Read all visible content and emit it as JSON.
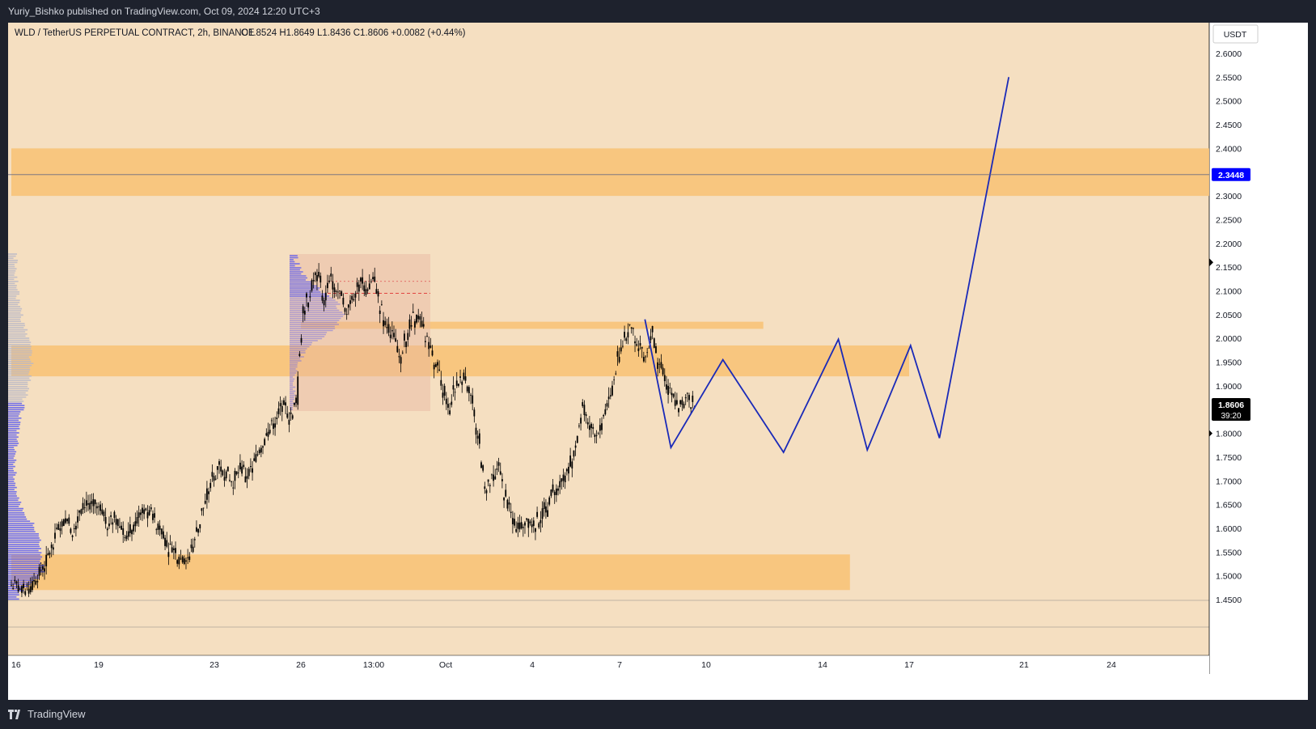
{
  "header": {
    "publisher_line": "Yuriy_Bishko published on TradingView.com, Oct 09, 2024 12:20 UTC+3"
  },
  "legend": {
    "symbol": "WLD / TetherUS PERPETUAL CONTRACT, 2h, BINANCE",
    "ohlc": "O1.8524  H1.8649  L1.8436  C1.8606  +0.0082 (+0.44%)"
  },
  "currency_button": "USDT",
  "footer": {
    "brand": "TradingView"
  },
  "colors": {
    "background": "#f5dfc1",
    "zone": "#f7c37a",
    "candle": "#000000",
    "projection": "#1a2ab8",
    "volume_profile": "#6161ef",
    "current_price_badge": "#000000",
    "level_badge": "#0000ff"
  },
  "chart_data": {
    "type": "candlestick",
    "symbol": "WLDUSDT.P",
    "timeframe": "2h",
    "ylim": [
      1.45,
      2.62
    ],
    "y_ticks": [
      "2.6000",
      "2.5500",
      "2.5000",
      "2.4500",
      "2.4000",
      "2.3500",
      "2.3000",
      "2.2500",
      "2.2000",
      "2.1500",
      "2.1000",
      "2.0500",
      "2.0000",
      "1.9500",
      "1.9000",
      "1.8500",
      "1.8000",
      "1.7500",
      "1.7000",
      "1.6500",
      "1.6000",
      "1.5500",
      "1.5000",
      "1.4500"
    ],
    "x_ticks": [
      "16",
      "19",
      "23",
      "26",
      "13:00",
      "Oct",
      "4",
      "7",
      "10",
      "14",
      "17",
      "21",
      "24"
    ],
    "current_price": {
      "value": "1.8606",
      "countdown": "39:20"
    },
    "horizontal_level": {
      "value": "2.3448"
    },
    "zones": [
      {
        "from": 2.3,
        "to": 2.4,
        "x_start": "16",
        "x_end": "right-edge"
      },
      {
        "from": 1.92,
        "to": 1.985,
        "x_start": "16",
        "x_end": "17"
      },
      {
        "from": 2.02,
        "to": 2.035,
        "x_start": "26",
        "x_end": "12 Oct"
      },
      {
        "from": 1.47,
        "to": 1.545,
        "x_start": "16",
        "x_end": "15 Oct"
      }
    ],
    "price_path_close": [
      1.48,
      1.46,
      1.47,
      1.5,
      1.52,
      1.56,
      1.6,
      1.62,
      1.6,
      1.64,
      1.65,
      1.66,
      1.63,
      1.61,
      1.62,
      1.6,
      1.59,
      1.61,
      1.63,
      1.64,
      1.61,
      1.58,
      1.56,
      1.54,
      1.53,
      1.55,
      1.6,
      1.66,
      1.7,
      1.73,
      1.72,
      1.7,
      1.73,
      1.71,
      1.74,
      1.77,
      1.8,
      1.83,
      1.86,
      1.84,
      1.86,
      2.05,
      2.1,
      2.14,
      2.08,
      2.12,
      2.1,
      2.05,
      2.08,
      2.12,
      2.1,
      2.13,
      2.07,
      2.03,
      2.0,
      1.97,
      2.02,
      2.05,
      2.03,
      1.98,
      1.95,
      1.9,
      1.86,
      1.9,
      1.92,
      1.88,
      1.8,
      1.68,
      1.7,
      1.72,
      1.66,
      1.62,
      1.6,
      1.62,
      1.6,
      1.62,
      1.65,
      1.67,
      1.7,
      1.73,
      1.78,
      1.86,
      1.82,
      1.8,
      1.84,
      1.88,
      1.95,
      2.0,
      2.02,
      1.99,
      1.97,
      2.0,
      1.95,
      1.9,
      1.87,
      1.86,
      1.87,
      1.86
    ],
    "projection_path": [
      {
        "x": "7.9 Oct",
        "y": 2.04
      },
      {
        "x": "8.8 Oct",
        "y": 1.77
      },
      {
        "x": "10.6 Oct",
        "y": 1.955
      },
      {
        "x": "12.7 Oct",
        "y": 1.76
      },
      {
        "x": "14.6 Oct",
        "y": 1.998
      },
      {
        "x": "15.6 Oct",
        "y": 1.765
      },
      {
        "x": "17.1 Oct",
        "y": 1.985
      },
      {
        "x": "18.1 Oct",
        "y": 1.79
      },
      {
        "x": "20.5 Oct",
        "y": 2.55
      }
    ]
  }
}
